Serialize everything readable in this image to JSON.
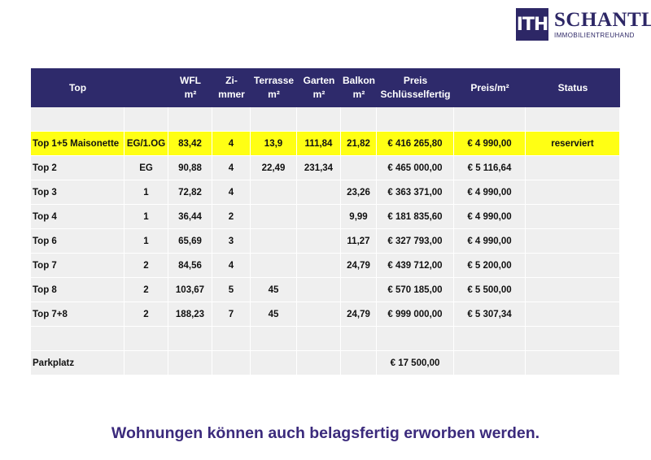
{
  "logo": {
    "mark": "ITH",
    "name": "SCHANTL",
    "subtitle": "IMMOBILIENTREUHAND",
    "color": "#2d2766"
  },
  "table": {
    "headers": [
      [
        "Top"
      ],
      [
        ""
      ],
      [
        "WFL",
        "m²"
      ],
      [
        "Zi-",
        "mmer"
      ],
      [
        "Terrasse",
        "m²"
      ],
      [
        "Garten",
        "m²"
      ],
      [
        "Balkon",
        "m²"
      ],
      [
        "Preis",
        "Schlüsselfertig"
      ],
      [
        "Preis/m²"
      ],
      [
        "Status"
      ]
    ],
    "rows": [
      [
        "",
        "",
        "",
        "",
        "",
        "",
        "",
        "",
        "",
        ""
      ],
      [
        "Top 1+5 Maisonette",
        "EG/1.OG",
        "83,42",
        "4",
        "13,9",
        "111,84",
        "21,82",
        "€ 416 265,80",
        "€ 4 990,00",
        "reserviert"
      ],
      [
        "Top 2",
        "EG",
        "90,88",
        "4",
        "22,49",
        "231,34",
        "",
        "€ 465 000,00",
        "€ 5 116,64",
        ""
      ],
      [
        "Top 3",
        "1",
        "72,82",
        "4",
        "",
        "",
        "23,26",
        "€ 363 371,00",
        "€ 4 990,00",
        ""
      ],
      [
        "Top 4",
        "1",
        "36,44",
        "2",
        "",
        "",
        "9,99",
        "€ 181 835,60",
        "€ 4 990,00",
        ""
      ],
      [
        "Top 6",
        "1",
        "65,69",
        "3",
        "",
        "",
        "11,27",
        "€ 327 793,00",
        "€ 4 990,00",
        ""
      ],
      [
        "Top 7",
        "2",
        "84,56",
        "4",
        "",
        "",
        "24,79",
        "€ 439 712,00",
        "€ 5 200,00",
        ""
      ],
      [
        "Top 8",
        "2",
        "103,67",
        "5",
        "45",
        "",
        "",
        "€ 570 185,00",
        "€ 5 500,00",
        ""
      ],
      [
        "Top 7+8",
        "2",
        "188,23",
        "7",
        "45",
        "",
        "24,79",
        "€ 999 000,00",
        "€ 5 307,34",
        ""
      ],
      [
        "",
        "",
        "",
        "",
        "",
        "",
        "",
        "",
        "",
        ""
      ],
      [
        "Parkplatz",
        "",
        "",
        "",
        "",
        "",
        "",
        "€ 17 500,00",
        "",
        ""
      ]
    ],
    "highlight_color": "#ffff14",
    "header_color": "#2e2a6b"
  },
  "footer": {
    "text": "Wohnungen können auch belagsfertig erworben werden."
  }
}
